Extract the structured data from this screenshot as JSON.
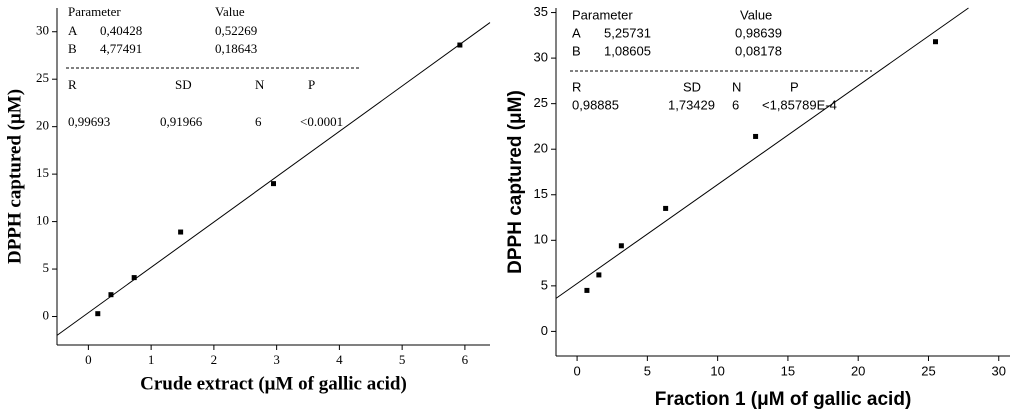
{
  "chart_data": [
    {
      "type": "scatter",
      "font": "serif",
      "xlabel": "Crude extract (μM of gallic acid)",
      "ylabel": "DPPH captured (μM)",
      "x": [
        0.15,
        0.36,
        0.73,
        1.47,
        2.95,
        5.92
      ],
      "y": [
        0.3,
        2.3,
        4.1,
        8.9,
        14.0,
        28.6
      ],
      "xlim": [
        -0.5,
        6.4
      ],
      "ylim": [
        -3,
        32.5
      ],
      "xticks": [
        0,
        1,
        2,
        3,
        4,
        5,
        6
      ],
      "yticks": [
        0,
        5,
        10,
        15,
        20,
        25,
        30
      ],
      "fit_table": {
        "headers": [
          "Parameter",
          "Value"
        ],
        "params": [
          {
            "name": "A",
            "value": {
              "value": 0.40428,
              "label": "0,40428"
            },
            "error": {
              "value": 0.52269,
              "label": "0,52269"
            }
          },
          {
            "name": "B",
            "value": {
              "value": 4.77491,
              "label": "4,77491"
            },
            "error": {
              "value": 0.18643,
              "label": "0,18643"
            }
          }
        ],
        "stat_headers": [
          "R",
          "SD",
          "N",
          "P"
        ],
        "stat_values": [
          {
            "value": 0.99693,
            "label": "0,99693"
          },
          {
            "value": 0.91966,
            "label": "0,91966"
          },
          6,
          "<0.0001"
        ]
      }
    },
    {
      "type": "scatter",
      "font": "sans",
      "xlabel": "Fraction 1 (μM of gallic acid)",
      "ylabel": "DPPH captured (μM)",
      "x": [
        0.7,
        1.55,
        3.15,
        6.3,
        12.7,
        25.5
      ],
      "y": [
        4.5,
        6.2,
        9.4,
        13.5,
        21.4,
        31.8
      ],
      "xlim": [
        -1.5,
        30.8
      ],
      "ylim": [
        -2.7,
        35.5
      ],
      "xticks": [
        0,
        5,
        10,
        15,
        20,
        25,
        30
      ],
      "yticks": [
        0,
        5,
        10,
        15,
        20,
        25,
        30,
        35
      ],
      "fit_table": {
        "headers": [
          "Parameter",
          "Value"
        ],
        "params": [
          {
            "name": "A",
            "value": {
              "value": 5.25731,
              "label": "5,25731"
            },
            "error": {
              "value": 0.98639,
              "label": "0,98639"
            }
          },
          {
            "name": "B",
            "value": {
              "value": 1.08605,
              "label": "1,08605"
            },
            "error": {
              "value": 0.08178,
              "label": "0,08178"
            }
          }
        ],
        "stat_headers": [
          "R",
          "SD",
          "N",
          "P"
        ],
        "stat_values": [
          {
            "value": 0.98885,
            "label": "0,98885"
          },
          {
            "value": 1.73429,
            "label": "1,73429"
          },
          6,
          "<1,85789E-4"
        ]
      }
    }
  ]
}
